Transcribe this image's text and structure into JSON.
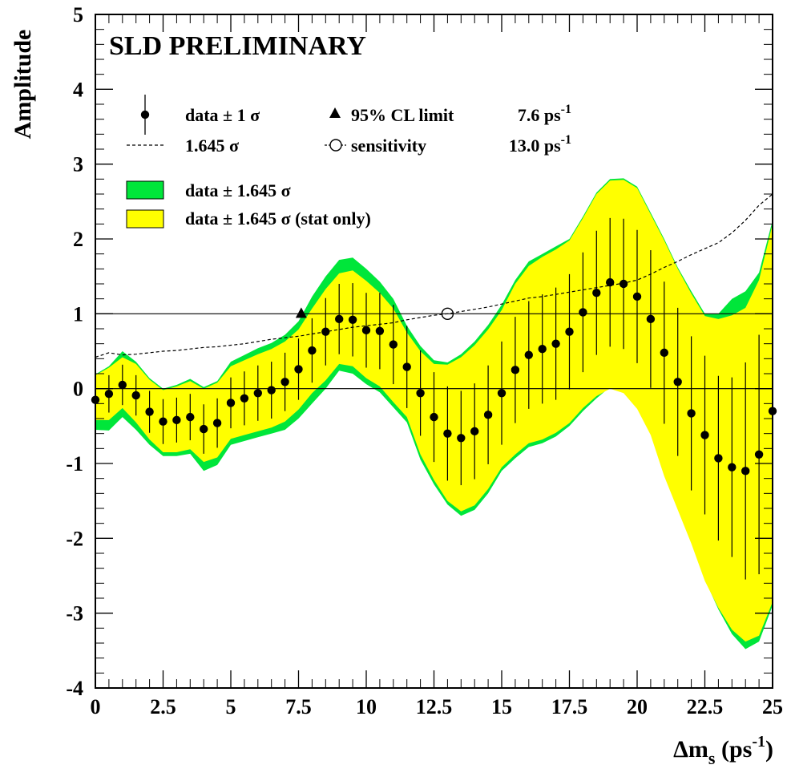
{
  "chart_data": {
    "type": "scatter",
    "title": "SLD PRELIMINARY",
    "ylabel": "Amplitude",
    "xlabel_main": "Δm",
    "xlabel_sub": "s",
    "xlabel_unit": " (ps",
    "xlabel_unit_sup": "-1",
    "xlabel_close": ")",
    "xlim": [
      0,
      25
    ],
    "ylim": [
      -4,
      5
    ],
    "x_ticks": [
      0,
      2.5,
      5,
      7.5,
      10,
      12.5,
      15,
      17.5,
      20,
      22.5,
      25
    ],
    "x_tick_labels": [
      "0",
      "2.5",
      "5",
      "7.5",
      "10",
      "12.5",
      "15",
      "17.5",
      "20",
      "22.5",
      "25"
    ],
    "y_ticks": [
      -4,
      -3,
      -2,
      -1,
      0,
      1,
      2,
      3,
      4,
      5
    ],
    "y_tick_labels": [
      "-4",
      "-3",
      "-2",
      "-1",
      "0",
      "1",
      "2",
      "3",
      "4",
      "5"
    ],
    "reference_lines": [
      0,
      1
    ],
    "data_points": {
      "x": [
        0,
        0.5,
        1,
        1.5,
        2,
        2.5,
        3,
        3.5,
        4,
        4.5,
        5,
        5.5,
        6,
        6.5,
        7,
        7.5,
        8,
        8.5,
        9,
        9.5,
        10,
        10.5,
        11,
        11.5,
        12,
        12.5,
        13,
        13.5,
        14,
        14.5,
        15,
        15.5,
        16,
        16.5,
        17,
        17.5,
        18,
        18.5,
        19,
        19.5,
        20,
        20.5,
        21,
        21.5,
        22,
        22.5,
        23,
        23.5,
        24,
        24.5,
        25
      ],
      "amplitude": [
        -0.15,
        -0.07,
        0.05,
        -0.09,
        -0.31,
        -0.44,
        -0.42,
        -0.38,
        -0.54,
        -0.46,
        -0.19,
        -0.13,
        -0.06,
        -0.02,
        0.09,
        0.26,
        0.51,
        0.76,
        0.93,
        0.92,
        0.78,
        0.77,
        0.59,
        0.29,
        -0.06,
        -0.38,
        -0.6,
        -0.66,
        -0.57,
        -0.35,
        -0.06,
        0.25,
        0.45,
        0.53,
        0.6,
        0.76,
        1.02,
        1.28,
        1.42,
        1.4,
        1.23,
        0.93,
        0.48,
        0.09,
        -0.33,
        -0.62,
        -0.93,
        -1.05,
        -1.1,
        -0.88,
        -0.3
      ],
      "sigma_1": [
        0.25,
        0.25,
        0.27,
        0.27,
        0.28,
        0.3,
        0.3,
        0.31,
        0.33,
        0.33,
        0.34,
        0.36,
        0.37,
        0.38,
        0.39,
        0.41,
        0.43,
        0.45,
        0.47,
        0.49,
        0.5,
        0.51,
        0.53,
        0.55,
        0.57,
        0.6,
        0.63,
        0.63,
        0.64,
        0.66,
        0.69,
        0.71,
        0.72,
        0.73,
        0.75,
        0.77,
        0.8,
        0.83,
        0.86,
        0.87,
        0.89,
        0.92,
        0.95,
        0.99,
        1.03,
        1.06,
        1.1,
        1.2,
        1.45,
        1.6,
        1.7
      ]
    },
    "band_total": {
      "upper": [
        0.19,
        0.3,
        0.5,
        0.36,
        0.14,
        0.0,
        0.05,
        0.13,
        0.02,
        0.1,
        0.36,
        0.45,
        0.54,
        0.61,
        0.72,
        0.9,
        1.23,
        1.5,
        1.72,
        1.75,
        1.6,
        1.43,
        1.2,
        0.84,
        0.57,
        0.38,
        0.35,
        0.46,
        0.63,
        0.85,
        1.12,
        1.45,
        1.7,
        1.8,
        1.9,
        2.0,
        2.3,
        2.62,
        2.8,
        2.81,
        2.7,
        2.35,
        2.0,
        1.62,
        1.3,
        1.0,
        1.0,
        1.2,
        1.3,
        1.55,
        2.25
      ],
      "lower": [
        -0.55,
        -0.56,
        -0.38,
        -0.55,
        -0.75,
        -0.9,
        -0.9,
        -0.87,
        -1.1,
        -1.02,
        -0.75,
        -0.7,
        -0.65,
        -0.6,
        -0.55,
        -0.4,
        -0.2,
        0.0,
        0.24,
        0.2,
        0.06,
        -0.05,
        -0.25,
        -0.45,
        -0.95,
        -1.28,
        -1.55,
        -1.7,
        -1.62,
        -1.4,
        -1.1,
        -0.93,
        -0.78,
        -0.73,
        -0.64,
        -0.5,
        -0.3,
        -0.13,
        0.02,
        -0.04,
        -0.25,
        -0.6,
        -1.15,
        -1.6,
        -2.05,
        -2.55,
        -2.95,
        -3.28,
        -3.48,
        -3.38,
        -2.9
      ]
    },
    "band_stat": {
      "upper": [
        0.18,
        0.28,
        0.42,
        0.33,
        0.12,
        -0.02,
        0.03,
        0.1,
        0.0,
        0.08,
        0.3,
        0.38,
        0.46,
        0.53,
        0.63,
        0.79,
        1.07,
        1.33,
        1.54,
        1.58,
        1.44,
        1.28,
        1.07,
        0.75,
        0.5,
        0.33,
        0.32,
        0.42,
        0.58,
        0.79,
        1.05,
        1.4,
        1.64,
        1.76,
        1.86,
        1.98,
        2.28,
        2.6,
        2.78,
        2.79,
        2.68,
        2.33,
        1.98,
        1.6,
        1.27,
        0.97,
        0.93,
        0.98,
        1.08,
        1.45,
        2.2
      ],
      "lower": [
        -0.42,
        -0.42,
        -0.26,
        -0.45,
        -0.68,
        -0.85,
        -0.85,
        -0.81,
        -0.98,
        -0.92,
        -0.67,
        -0.62,
        -0.57,
        -0.52,
        -0.44,
        -0.28,
        -0.06,
        0.11,
        0.33,
        0.3,
        0.14,
        0.03,
        -0.18,
        -0.38,
        -0.88,
        -1.22,
        -1.5,
        -1.64,
        -1.56,
        -1.34,
        -1.05,
        -0.88,
        -0.73,
        -0.68,
        -0.59,
        -0.46,
        -0.26,
        -0.1,
        0.0,
        -0.06,
        -0.27,
        -0.62,
        -1.17,
        -1.62,
        -2.07,
        -2.57,
        -2.93,
        -3.22,
        -3.38,
        -3.3,
        -2.85
      ]
    },
    "sigma_1645_line": [
      0.42,
      0.48,
      0.45,
      0.46,
      0.48,
      0.5,
      0.51,
      0.53,
      0.55,
      0.56,
      0.58,
      0.6,
      0.63,
      0.66,
      0.68,
      0.7,
      0.73,
      0.76,
      0.79,
      0.82,
      0.84,
      0.86,
      0.88,
      0.92,
      0.95,
      0.98,
      1.0,
      1.03,
      1.06,
      1.09,
      1.13,
      1.17,
      1.21,
      1.23,
      1.26,
      1.29,
      1.32,
      1.35,
      1.38,
      1.41,
      1.45,
      1.53,
      1.62,
      1.7,
      1.79,
      1.87,
      1.95,
      2.08,
      2.25,
      2.45,
      2.6
    ],
    "markers": {
      "cl_limit": {
        "x": 7.6,
        "y": 1
      },
      "sensitivity": {
        "x": 13.0,
        "y": 1
      }
    },
    "legend": {
      "entries": [
        {
          "text": "data ± 1 σ"
        },
        {
          "text": "95% CL limit"
        },
        {
          "value": "7.6 ps",
          "sup": "-1"
        },
        {
          "text": "1.645 σ"
        },
        {
          "text": "sensitivity"
        },
        {
          "value": "13.0 ps",
          "sup": "-1"
        },
        {
          "text": "data ± 1.645 σ"
        },
        {
          "text": "data ± 1.645 σ (stat only)"
        }
      ],
      "placement": "top-left"
    },
    "colors": {
      "band_total": "#00e63a",
      "band_stat": "#ffff00",
      "points": "#000000"
    }
  }
}
